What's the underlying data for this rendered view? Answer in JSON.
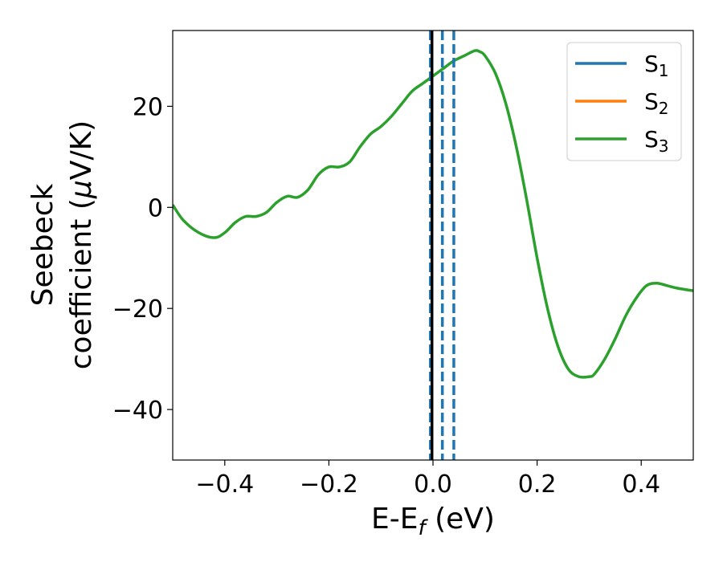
{
  "chart_data": {
    "type": "line",
    "title": "",
    "xlabel": {
      "main": "E-E",
      "sub": "f",
      "suffix": " (eV)"
    },
    "ylabel": {
      "line1": "Seebeck",
      "line2_prefix": "coefficient  (",
      "line2_mu": "μ",
      "line2_suffix": "V/K)"
    },
    "xlim": [
      -0.5,
      0.5
    ],
    "ylim": [
      -50,
      35
    ],
    "x_ticks": [
      -0.4,
      -0.2,
      0.0,
      0.2,
      0.4
    ],
    "x_tick_labels": [
      "−0.4",
      "−0.2",
      "0.0",
      "0.2",
      "0.4"
    ],
    "y_ticks": [
      20,
      0,
      -20,
      -40
    ],
    "y_tick_labels": [
      "20",
      "0",
      "−20",
      "−40"
    ],
    "grid": false,
    "legend_position": "top-right",
    "series": [
      {
        "name": "S",
        "sub": "1",
        "color": "#1f77b4"
      },
      {
        "name": "S",
        "sub": "2",
        "color": "#ff7f0e"
      },
      {
        "name": "S",
        "sub": "3",
        "color": "#2ca02c"
      }
    ],
    "curve": {
      "x": [
        -0.5,
        -0.48,
        -0.45,
        -0.42,
        -0.4,
        -0.38,
        -0.36,
        -0.34,
        -0.32,
        -0.3,
        -0.28,
        -0.26,
        -0.24,
        -0.22,
        -0.2,
        -0.18,
        -0.16,
        -0.14,
        -0.12,
        -0.1,
        -0.08,
        -0.06,
        -0.04,
        -0.02,
        0.0,
        0.02,
        0.04,
        0.06,
        0.08,
        0.09,
        0.1,
        0.12,
        0.14,
        0.16,
        0.18,
        0.2,
        0.22,
        0.24,
        0.26,
        0.28,
        0.3,
        0.31,
        0.33,
        0.35,
        0.37,
        0.39,
        0.41,
        0.43,
        0.45,
        0.47,
        0.5
      ],
      "y": [
        0.5,
        -2.5,
        -5.0,
        -6.0,
        -5.0,
        -3.0,
        -1.8,
        -1.8,
        -1.0,
        1.0,
        2.2,
        2.0,
        3.5,
        6.5,
        8.0,
        8.0,
        9.0,
        12.0,
        14.5,
        16.0,
        18.0,
        20.5,
        23.0,
        24.5,
        26.0,
        27.5,
        29.0,
        30.0,
        31.0,
        30.8,
        30.0,
        26.5,
        20.5,
        12.0,
        1.5,
        -10.0,
        -20.0,
        -27.5,
        -32.0,
        -33.5,
        -33.5,
        -33.0,
        -30.0,
        -26.0,
        -21.5,
        -18.0,
        -15.5,
        -15.0,
        -15.5,
        -16.0,
        -16.5
      ],
      "color": "#2ca02c"
    },
    "vlines": [
      {
        "x": -0.005,
        "style": "dashed",
        "color": "#1f77b4"
      },
      {
        "x": 0.018,
        "style": "dashed",
        "color": "#1f77b4"
      },
      {
        "x": 0.04,
        "style": "dashed",
        "color": "#1f77b4"
      },
      {
        "x": -0.002,
        "style": "solid",
        "color": "#000000"
      }
    ]
  }
}
